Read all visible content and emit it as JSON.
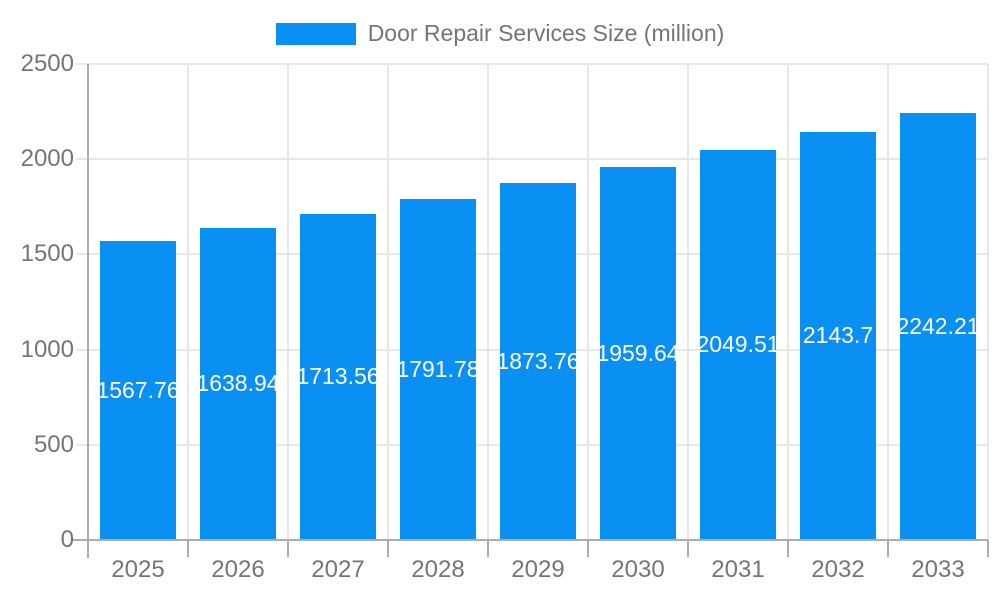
{
  "chart_data": {
    "type": "bar",
    "title": "Door Repair Services Size (million)",
    "legend": {
      "label": "Door Repair Services Size (million)",
      "position": "top-center"
    },
    "categories": [
      "2025",
      "2026",
      "2027",
      "2028",
      "2029",
      "2030",
      "2031",
      "2032",
      "2033"
    ],
    "series": [
      {
        "name": "Door Repair Services Size (million)",
        "values": [
          1567.76,
          1638.94,
          1713.56,
          1791.78,
          1873.76,
          1959.64,
          2049.51,
          2143.7,
          2242.21
        ],
        "labels": [
          "1567.76",
          "1638.94",
          "1713.56",
          "1791.78",
          "1873.76",
          "1959.64",
          "2049.51",
          "2143.7",
          "2242.21"
        ]
      }
    ],
    "xlabel": "",
    "ylabel": "",
    "ylim": [
      0,
      2500
    ],
    "yticks": [
      0,
      500,
      1000,
      1500,
      2000,
      2500
    ],
    "grid": true,
    "colors": {
      "bar": "#0a8ff2",
      "value_label": "#ffffff",
      "axis_text": "#757575",
      "grid_line": "#e7e7e7",
      "axis_line": "#adadad"
    }
  }
}
